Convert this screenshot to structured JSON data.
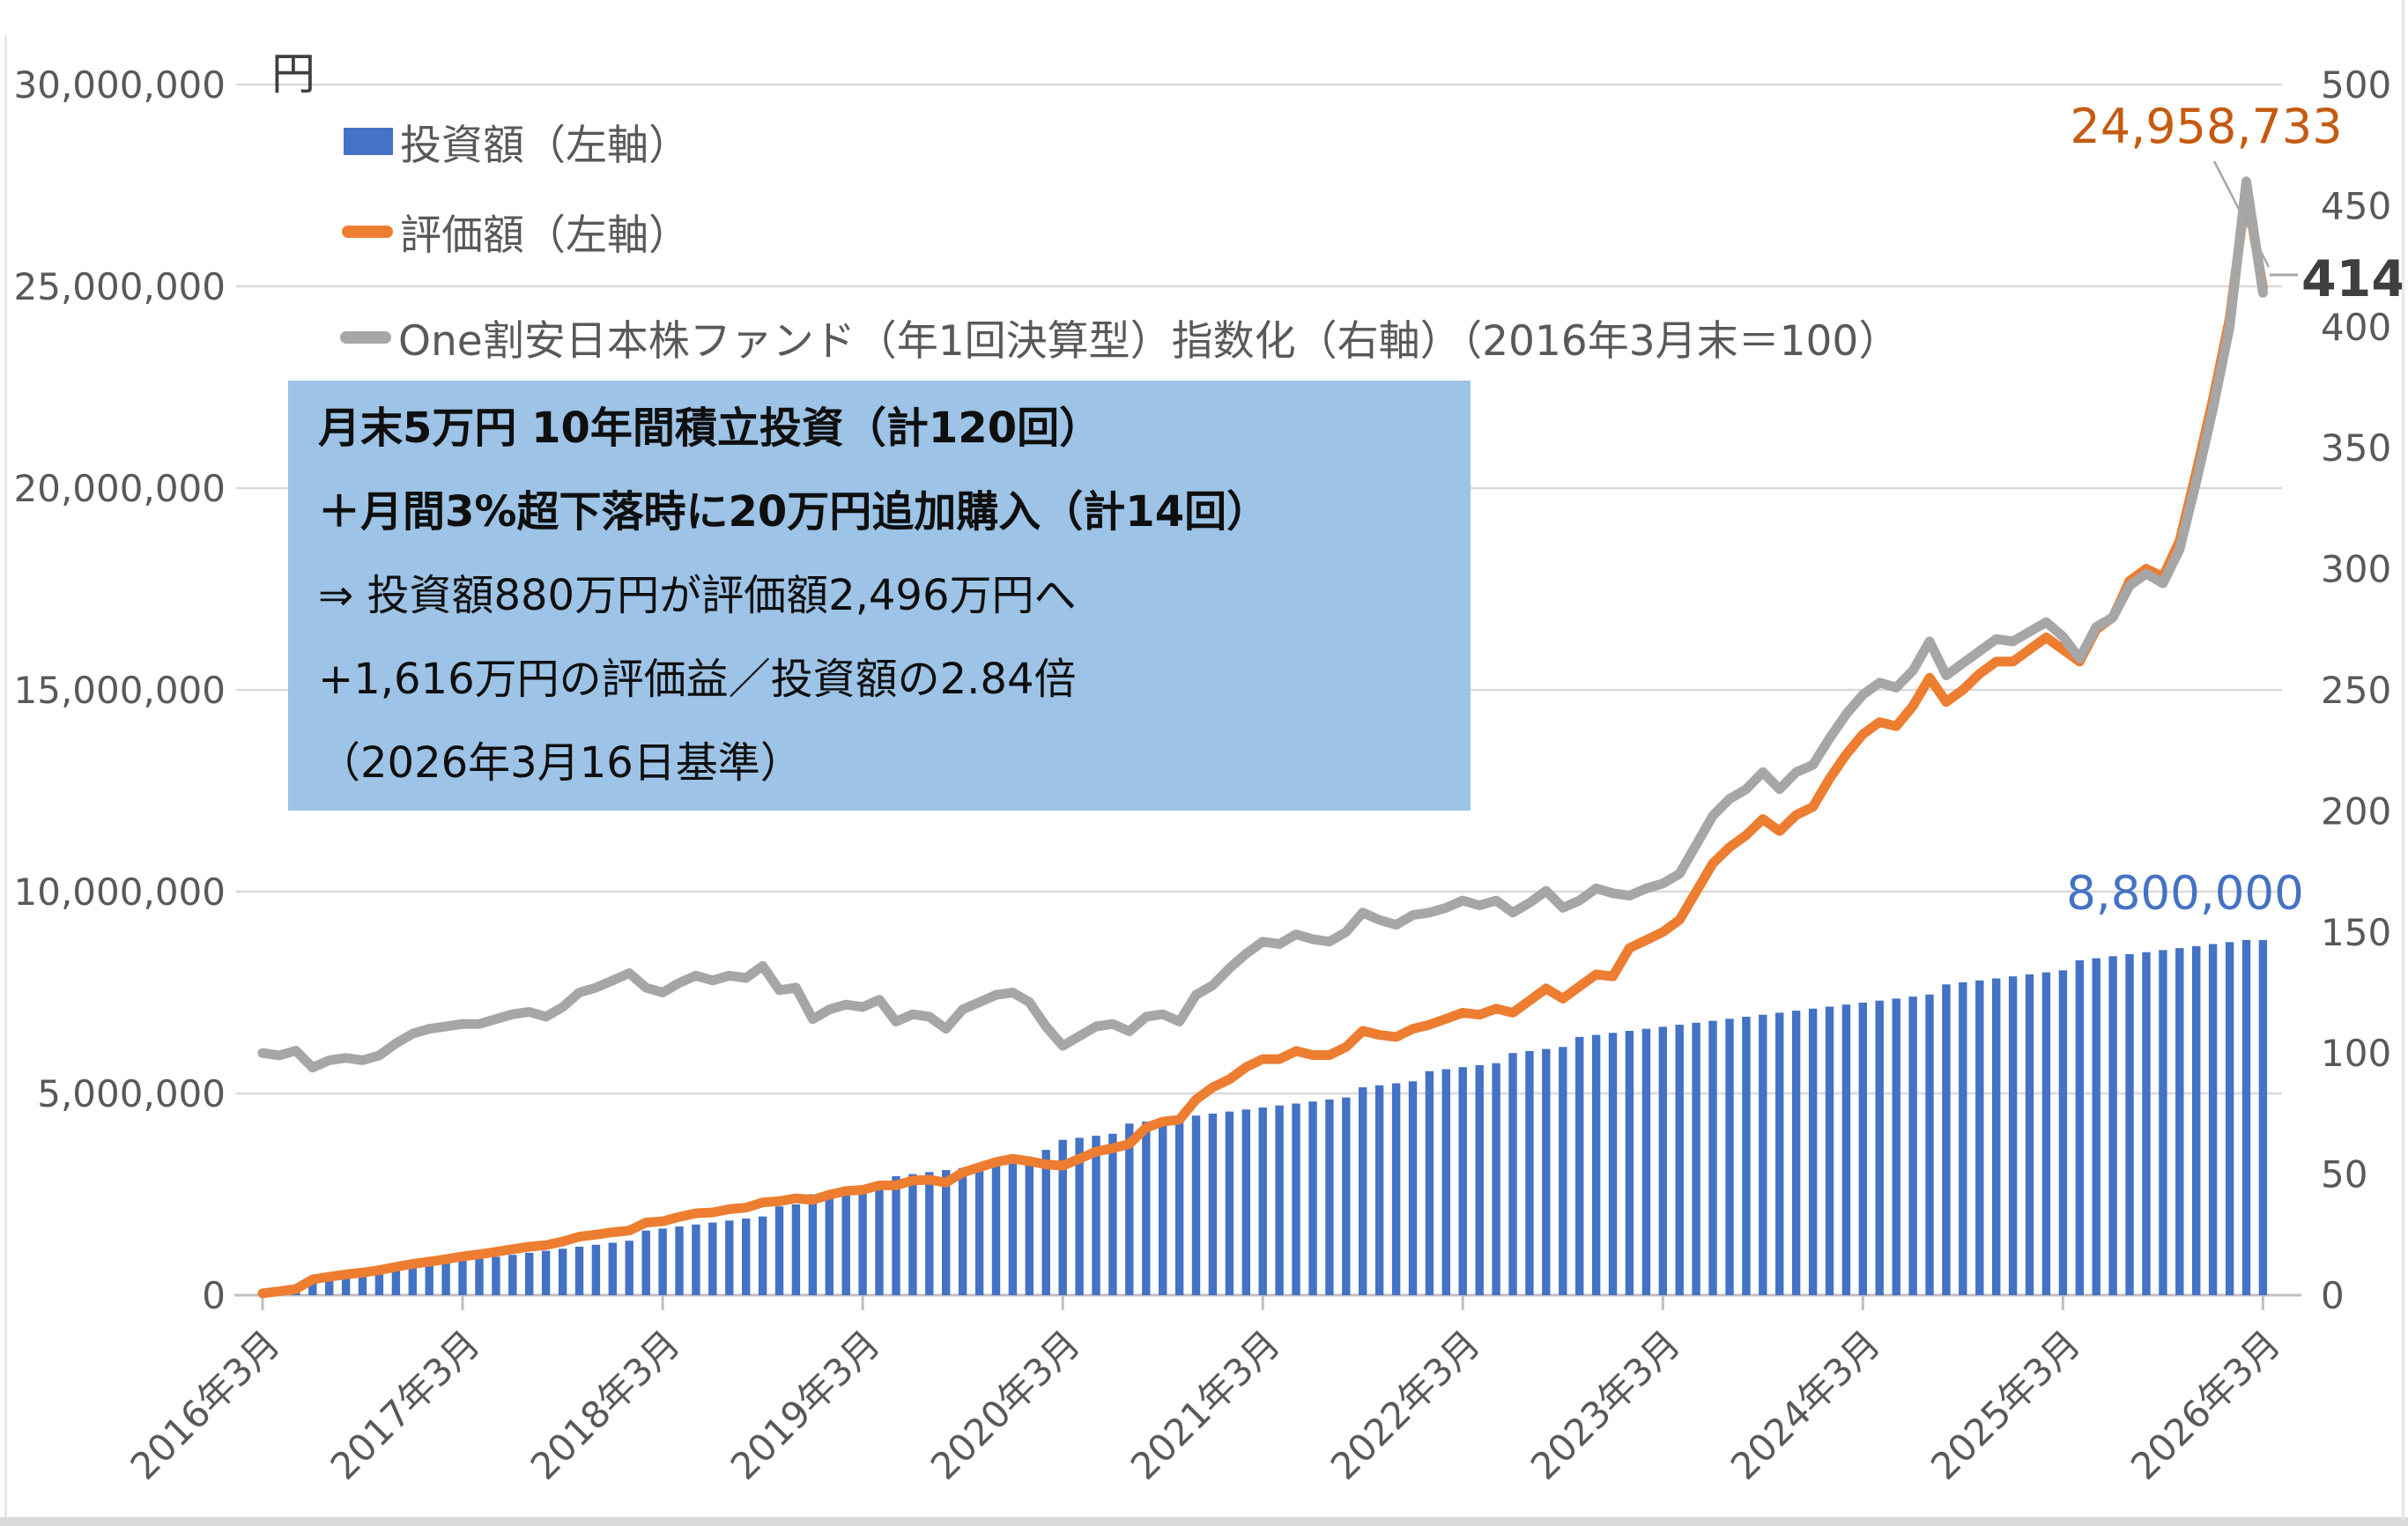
{
  "page": {
    "unit_label": "円"
  },
  "legend": {
    "items": [
      {
        "label": "投資額（左軸）",
        "color": "#4472C4",
        "type": "bar"
      },
      {
        "label": "評価額（左軸）",
        "color": "#ED7D31",
        "type": "line"
      },
      {
        "label": "One割安日本株ファンド（年1回決算型）指数化（右軸）（2016年3月末＝100）",
        "color": "#A6A6A6",
        "type": "line"
      }
    ]
  },
  "annotation": {
    "bg_color": "#9DC3E6",
    "lines": [
      "月末5万円 10年間積立投資（計120回）",
      "＋月間3%超下落時に20万円追加購入（計14回）",
      "⇒ 投資額880万円が評価額2,496万円へ",
      "+1,616万円の評価益／投資額の2.84倍",
      "（2026年3月16日基準）"
    ]
  },
  "data_labels": {
    "valuation_final": "24,958,733",
    "index_final": "414",
    "investment_final": "8,800,000"
  },
  "colors": {
    "bar_blue": "#4472C4",
    "line_orange": "#ED7D31",
    "line_gray": "#A6A6A6",
    "valuation_label": "#C55A11",
    "index_label": "#3F3F3F",
    "annotation_bg": "#9DC3E6",
    "axis_text": "#595959",
    "gridline": "#D9D9D9"
  },
  "chart_data": {
    "type": "combo",
    "title": "",
    "x_tick_labels": [
      "2016年3月",
      "2017年3月",
      "2018年3月",
      "2019年3月",
      "2020年3月",
      "2021年3月",
      "2022年3月",
      "2023年3月",
      "2024年3月",
      "2025年3月",
      "2026年3月"
    ],
    "x_months_start": "2016-03",
    "x_months_end": "2026-03",
    "left_axis": {
      "title": "円",
      "min": 0,
      "max": 30000000,
      "tick_labels": [
        "0",
        "5,000,000",
        "10,000,000",
        "15,000,000",
        "20,000,000",
        "25,000,000",
        "30,000,000"
      ]
    },
    "right_axis": {
      "min": 0,
      "max": 500,
      "tick_labels": [
        "0",
        "50",
        "100",
        "150",
        "200",
        "250",
        "300",
        "350",
        "400",
        "450",
        "500"
      ]
    },
    "grid": true,
    "legend_position": "top-left",
    "series": [
      {
        "name": "投資額（左軸）",
        "type": "bar",
        "axis": "left",
        "color": "#4472C4",
        "values": [
          50000,
          100000,
          150000,
          400000,
          450000,
          500000,
          550000,
          600000,
          650000,
          700000,
          750000,
          800000,
          850000,
          900000,
          950000,
          1000000,
          1050000,
          1100000,
          1150000,
          1200000,
          1250000,
          1300000,
          1350000,
          1600000,
          1650000,
          1700000,
          1750000,
          1800000,
          1850000,
          1900000,
          1950000,
          2200000,
          2250000,
          2500000,
          2550000,
          2600000,
          2650000,
          2700000,
          2950000,
          3000000,
          3050000,
          3100000,
          3150000,
          3200000,
          3250000,
          3300000,
          3350000,
          3600000,
          3850000,
          3900000,
          3950000,
          4000000,
          4250000,
          4300000,
          4350000,
          4400000,
          4450000,
          4500000,
          4550000,
          4600000,
          4650000,
          4700000,
          4750000,
          4800000,
          4850000,
          4900000,
          5150000,
          5200000,
          5250000,
          5300000,
          5550000,
          5600000,
          5650000,
          5700000,
          5750000,
          6000000,
          6050000,
          6100000,
          6150000,
          6400000,
          6450000,
          6500000,
          6550000,
          6600000,
          6650000,
          6700000,
          6750000,
          6800000,
          6850000,
          6900000,
          6950000,
          7000000,
          7050000,
          7100000,
          7150000,
          7200000,
          7250000,
          7300000,
          7350000,
          7400000,
          7450000,
          7700000,
          7750000,
          7800000,
          7850000,
          7900000,
          7950000,
          8000000,
          8050000,
          8300000,
          8350000,
          8400000,
          8450000,
          8500000,
          8550000,
          8600000,
          8650000,
          8700000,
          8750000,
          8800000,
          8800000
        ]
      },
      {
        "name": "評価額（左軸）",
        "type": "line",
        "axis": "left",
        "color": "#ED7D31",
        "values": [
          45000,
          95000,
          150000,
          390000,
          455000,
          515000,
          560000,
          620000,
          700000,
          775000,
          830000,
          890000,
          960000,
          1010000,
          1075000,
          1140000,
          1200000,
          1240000,
          1330000,
          1450000,
          1500000,
          1560000,
          1600000,
          1800000,
          1830000,
          1940000,
          2030000,
          2050000,
          2130000,
          2170000,
          2300000,
          2330000,
          2400000,
          2360000,
          2490000,
          2580000,
          2610000,
          2720000,
          2720000,
          2840000,
          2860000,
          2790000,
          3040000,
          3170000,
          3300000,
          3380000,
          3320000,
          3240000,
          3210000,
          3380000,
          3560000,
          3640000,
          3750000,
          4150000,
          4300000,
          4350000,
          4850000,
          5150000,
          5350000,
          5650000,
          5850000,
          5850000,
          6050000,
          5950000,
          5950000,
          6150000,
          6550000,
          6450000,
          6400000,
          6600000,
          6700000,
          6850000,
          7000000,
          6950000,
          7100000,
          7000000,
          7300000,
          7600000,
          7350000,
          7650000,
          7950000,
          7900000,
          8600000,
          8800000,
          9000000,
          9300000,
          10000000,
          10700000,
          11100000,
          11400000,
          11800000,
          11500000,
          11900000,
          12100000,
          12800000,
          13400000,
          13900000,
          14200000,
          14100000,
          14600000,
          15300000,
          14700000,
          15000000,
          15400000,
          15700000,
          15700000,
          16000000,
          16300000,
          16000000,
          15700000,
          16500000,
          16800000,
          17700000,
          18000000,
          17800000,
          18700000,
          20400000,
          22200000,
          24200000,
          27400000,
          24958733
        ]
      },
      {
        "name": "One割安日本株ファンド（年1回決算型）指数化（右軸）（2016年3月末＝100）",
        "type": "line",
        "axis": "right",
        "color": "#A6A6A6",
        "values": [
          100,
          99,
          101,
          94,
          97,
          98,
          97,
          99,
          104,
          108,
          110,
          111,
          112,
          112,
          114,
          116,
          117,
          115,
          119,
          125,
          127,
          130,
          133,
          127,
          125,
          129,
          132,
          130,
          132,
          131,
          136,
          126,
          127,
          114,
          118,
          120,
          119,
          122,
          113,
          116,
          115,
          110,
          118,
          121,
          124,
          125,
          121,
          111,
          103,
          107,
          111,
          112,
          109,
          115,
          116,
          113,
          124,
          128,
          135,
          141,
          146,
          145,
          149,
          147,
          146,
          150,
          158,
          155,
          153,
          157,
          158,
          160,
          163,
          161,
          163,
          158,
          162,
          167,
          160,
          163,
          168,
          166,
          165,
          168,
          170,
          174,
          186,
          198,
          205,
          209,
          216,
          209,
          216,
          219,
          230,
          240,
          248,
          253,
          251,
          258,
          270,
          256,
          261,
          266,
          271,
          270,
          274,
          278,
          272,
          263,
          276,
          280,
          293,
          298,
          294,
          308,
          336,
          366,
          400,
          460,
          414
        ]
      }
    ]
  }
}
